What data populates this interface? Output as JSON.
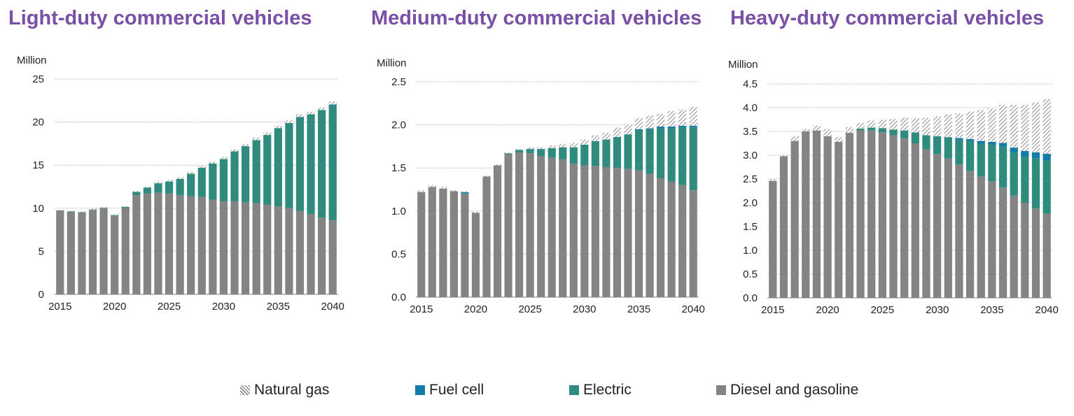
{
  "colors": {
    "title": "#7a4fa6",
    "diesel": "#848484",
    "electric": "#2e8b7e",
    "fuel_cell": "#127ba8",
    "natural_gas_hatch": "#8c8c8c",
    "grid": "#c8c8c8"
  },
  "legend": [
    {
      "key": "natural_gas",
      "label": "Natural gas"
    },
    {
      "key": "fuel_cell",
      "label": "Fuel cell"
    },
    {
      "key": "electric",
      "label": "Electric"
    },
    {
      "key": "diesel",
      "label": "Diesel and gasoline"
    }
  ],
  "chart_data": [
    {
      "type": "bar",
      "stacked": true,
      "title": "Light-duty commercial vehicles",
      "ylabel": "Million",
      "ylim": [
        0,
        25
      ],
      "yticks": [
        "0",
        "5",
        "10",
        "15",
        "20",
        "25"
      ],
      "xtick_labels": [
        "2015",
        "2020",
        "2025",
        "2030",
        "2035",
        "2040"
      ],
      "grid": true,
      "x": [
        2015,
        2016,
        2017,
        2018,
        2019,
        2020,
        2021,
        2022,
        2023,
        2024,
        2025,
        2026,
        2027,
        2028,
        2029,
        2030,
        2031,
        2032,
        2033,
        2034,
        2035,
        2036,
        2037,
        2038,
        2039,
        2040
      ],
      "series": [
        {
          "name": "Diesel and gasoline",
          "key": "diesel",
          "values": [
            9.7,
            9.6,
            9.5,
            9.8,
            10.0,
            9.1,
            10.0,
            11.5,
            11.7,
            11.8,
            11.7,
            11.5,
            11.4,
            11.3,
            11.0,
            10.8,
            10.8,
            10.7,
            10.6,
            10.4,
            10.2,
            10.0,
            9.7,
            9.3,
            8.9,
            8.6
          ]
        },
        {
          "name": "Electric",
          "key": "electric",
          "values": [
            0.05,
            0.05,
            0.05,
            0.05,
            0.05,
            0.1,
            0.15,
            0.4,
            0.7,
            1.1,
            1.4,
            1.9,
            2.6,
            3.4,
            4.2,
            4.9,
            5.8,
            6.5,
            7.3,
            8.1,
            9.1,
            9.9,
            10.9,
            11.6,
            12.5,
            13.4
          ]
        },
        {
          "name": "Fuel cell",
          "key": "fuel_cell",
          "values": [
            0,
            0,
            0,
            0,
            0,
            0,
            0,
            0,
            0,
            0,
            0,
            0,
            0,
            0,
            0,
            0,
            0,
            0,
            0,
            0,
            0,
            0,
            0,
            0,
            0,
            0.05
          ]
        },
        {
          "name": "Natural gas",
          "key": "natural_gas",
          "values": [
            0.05,
            0.05,
            0.05,
            0.1,
            0.1,
            0.1,
            0.1,
            0.1,
            0.1,
            0.15,
            0.2,
            0.2,
            0.2,
            0.2,
            0.2,
            0.25,
            0.25,
            0.25,
            0.3,
            0.3,
            0.3,
            0.3,
            0.3,
            0.3,
            0.3,
            0.35
          ]
        }
      ]
    },
    {
      "type": "bar",
      "stacked": true,
      "title": "Medium-duty commercial vehicles",
      "ylabel": "Million",
      "ylim": [
        0,
        2.5
      ],
      "yticks": [
        "0.0",
        "0.5",
        "1.0",
        "1.5",
        "2.0",
        "2.5"
      ],
      "xtick_labels": [
        "2015",
        "2020",
        "2025",
        "2030",
        "2035",
        "2040"
      ],
      "grid": true,
      "x": [
        2015,
        2016,
        2017,
        2018,
        2019,
        2020,
        2021,
        2022,
        2023,
        2024,
        2025,
        2026,
        2027,
        2028,
        2029,
        2030,
        2031,
        2032,
        2033,
        2034,
        2035,
        2036,
        2037,
        2038,
        2039,
        2040
      ],
      "series": [
        {
          "name": "Diesel and gasoline",
          "key": "diesel",
          "values": [
            1.22,
            1.28,
            1.26,
            1.23,
            1.2,
            0.98,
            1.4,
            1.53,
            1.66,
            1.68,
            1.67,
            1.64,
            1.62,
            1.6,
            1.55,
            1.53,
            1.52,
            1.51,
            1.5,
            1.49,
            1.47,
            1.43,
            1.38,
            1.34,
            1.3,
            1.24
          ]
        },
        {
          "name": "Electric",
          "key": "electric",
          "values": [
            0,
            0,
            0,
            0,
            0.01,
            0,
            0,
            0,
            0.01,
            0.03,
            0.05,
            0.08,
            0.11,
            0.14,
            0.19,
            0.24,
            0.29,
            0.32,
            0.36,
            0.4,
            0.47,
            0.52,
            0.58,
            0.62,
            0.67,
            0.73
          ]
        },
        {
          "name": "Fuel cell",
          "key": "fuel_cell",
          "values": [
            0,
            0,
            0,
            0,
            0.01,
            0,
            0,
            0,
            0,
            0,
            0,
            0,
            0,
            0,
            0,
            0,
            0,
            0,
            0,
            0,
            0.01,
            0.01,
            0.02,
            0.02,
            0.02,
            0.02
          ]
        },
        {
          "name": "Natural gas",
          "key": "natural_gas",
          "values": [
            0.02,
            0.02,
            0.02,
            0.01,
            0.01,
            0.01,
            0.01,
            0.01,
            0.01,
            0.01,
            0.02,
            0.02,
            0.03,
            0.04,
            0.05,
            0.06,
            0.07,
            0.08,
            0.11,
            0.12,
            0.13,
            0.15,
            0.15,
            0.18,
            0.19,
            0.22
          ]
        }
      ]
    },
    {
      "type": "bar",
      "stacked": true,
      "title": "Heavy-duty commercial vehicles",
      "ylabel": "Million",
      "ylim": [
        0,
        4.5
      ],
      "yticks": [
        "0.0",
        "0.5",
        "1.0",
        "1.5",
        "2.0",
        "2.5",
        "3.0",
        "3.5",
        "4.0",
        "4.5"
      ],
      "xtick_labels": [
        "2015",
        "2020",
        "2025",
        "2030",
        "2035",
        "2040"
      ],
      "grid": true,
      "x": [
        2015,
        2016,
        2017,
        2018,
        2019,
        2020,
        2021,
        2022,
        2023,
        2024,
        2025,
        2026,
        2027,
        2028,
        2029,
        2030,
        2031,
        2032,
        2033,
        2034,
        2035,
        2036,
        2037,
        2038,
        2039,
        2040
      ],
      "series": [
        {
          "name": "Diesel and gasoline",
          "key": "diesel",
          "values": [
            2.46,
            2.98,
            3.3,
            3.5,
            3.52,
            3.4,
            3.28,
            3.47,
            3.53,
            3.52,
            3.48,
            3.42,
            3.35,
            3.25,
            3.12,
            3.02,
            2.93,
            2.8,
            2.67,
            2.55,
            2.45,
            2.32,
            2.15,
            2.0,
            1.88,
            1.77
          ]
        },
        {
          "name": "Electric",
          "key": "electric",
          "values": [
            0,
            0,
            0,
            0,
            0,
            0,
            0,
            0,
            0.03,
            0.06,
            0.09,
            0.12,
            0.17,
            0.23,
            0.3,
            0.38,
            0.45,
            0.53,
            0.63,
            0.7,
            0.77,
            0.86,
            0.91,
            0.97,
            1.05,
            1.12
          ]
        },
        {
          "name": "Fuel cell",
          "key": "fuel_cell",
          "values": [
            0,
            0,
            0,
            0,
            0,
            0,
            0,
            0,
            0,
            0,
            0,
            0,
            0,
            0,
            0,
            0,
            0,
            0.03,
            0.04,
            0.05,
            0.06,
            0.08,
            0.1,
            0.12,
            0.13,
            0.14
          ]
        },
        {
          "name": "Natural gas",
          "key": "natural_gas",
          "values": [
            0.03,
            0.03,
            0.1,
            0.05,
            0.1,
            0.15,
            0.1,
            0.12,
            0.12,
            0.15,
            0.18,
            0.22,
            0.27,
            0.3,
            0.37,
            0.42,
            0.48,
            0.52,
            0.58,
            0.65,
            0.7,
            0.8,
            0.9,
            0.97,
            1.05,
            1.15
          ]
        }
      ]
    }
  ]
}
